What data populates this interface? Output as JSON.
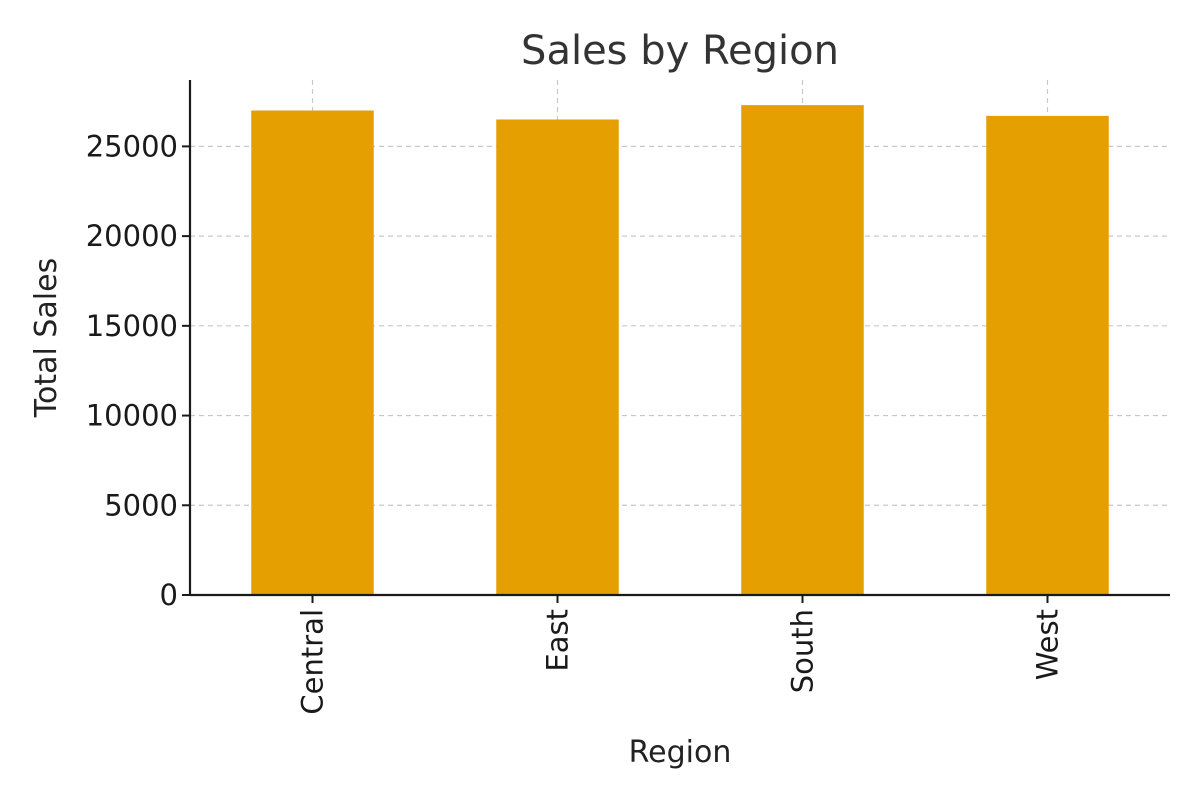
{
  "chart_data": {
    "type": "bar",
    "title": "Sales by Region",
    "xlabel": "Region",
    "ylabel": "Total Sales",
    "categories": [
      "Central",
      "East",
      "South",
      "West"
    ],
    "values": [
      27000,
      26500,
      27300,
      26700
    ],
    "ylim": [
      0,
      28700
    ],
    "yticks": [
      0,
      5000,
      10000,
      15000,
      20000,
      25000
    ],
    "ytick_labels": [
      "0",
      "5000",
      "10000",
      "15000",
      "20000",
      "25000"
    ],
    "grid": true,
    "legend": "none",
    "bar_color": "#E69F00"
  }
}
